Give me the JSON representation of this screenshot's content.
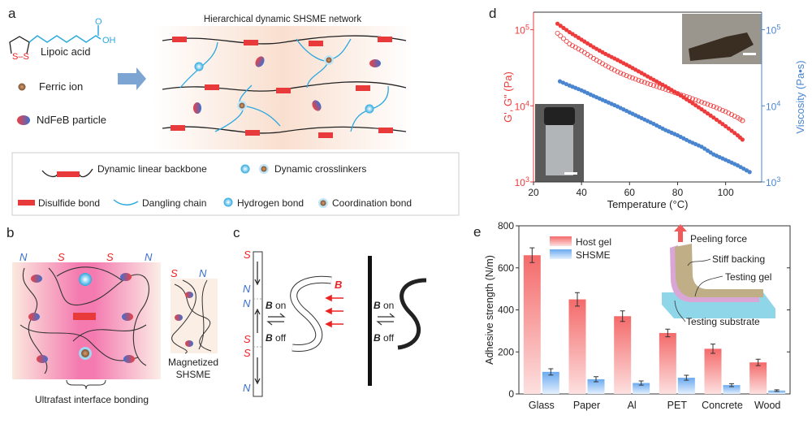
{
  "panels": {
    "a": {
      "label": "a",
      "network_title": "Hierarchical dynamic SHSME network",
      "molecule": {
        "name": "Lipoic acid",
        "atom_o": "O",
        "atom_oh": "OH",
        "atom_s": "S–S"
      },
      "ferric_ion": "Ferric ion",
      "ndfeb": "NdFeB particle",
      "legend": {
        "backbone": "Dynamic linear backbone",
        "crosslinkers": "Dynamic crosslinkers",
        "disulfide": "Disulfide bond",
        "dangling": "Dangling chain",
        "hydrogen": "Hydrogen bond",
        "coordination": "Coordination bond"
      }
    },
    "b": {
      "label": "b",
      "poles": [
        "N",
        "S",
        "S",
        "N"
      ],
      "small_poles": [
        "S",
        "N"
      ],
      "bonding_caption": "Ultrafast interface bonding",
      "magnetized_line1": "Magnetized",
      "magnetized_line2": "SHSME"
    },
    "c": {
      "label": "c",
      "strip_poles": [
        "S",
        "N",
        "N",
        "S",
        "S",
        "N"
      ],
      "b_symbol": "B",
      "on": " on",
      "off": " off",
      "colors": {
        "north": "#3a6fd0",
        "south": "#ee2222"
      }
    },
    "d": {
      "label": "d"
    },
    "e": {
      "label": "e"
    }
  },
  "chart_data": [
    {
      "type": "scatter",
      "panel": "d",
      "xlabel": "Temperature (°C)",
      "ylabel_left": "G', G\" (Pa)",
      "ylabel_right": "Viscosity (Pa•s)",
      "xlim": [
        20,
        115
      ],
      "ylim_left": [
        1000,
        170000
      ],
      "ylim_right": [
        1000,
        170000
      ],
      "yscale": "log",
      "x_ticks": [
        "20",
        "40",
        "60",
        "80",
        "100"
      ],
      "y_ticks_left": [
        "10^3",
        "10^4",
        "10^5"
      ],
      "y_ticks_right": [
        "10^3",
        "10^4",
        "10^5"
      ],
      "grid": false,
      "series": [
        {
          "axis": "left",
          "marker": "filled",
          "color": "#ee3b3b",
          "x": [
            30,
            35,
            40,
            45,
            50,
            55,
            60,
            65,
            70,
            75,
            80,
            85,
            90,
            95,
            100,
            105,
            107
          ],
          "y": [
            120000,
            93000,
            74000,
            59000,
            48000,
            40000,
            33000,
            27000,
            22000,
            18000,
            14500,
            11500,
            9000,
            7000,
            5400,
            4100,
            3600
          ]
        },
        {
          "axis": "left",
          "marker": "open",
          "color": "#ee3b3b",
          "x": [
            30,
            35,
            40,
            45,
            50,
            55,
            60,
            65,
            70,
            75,
            80,
            85,
            90,
            95,
            100,
            105,
            107
          ],
          "y": [
            90000,
            65000,
            53000,
            42000,
            34000,
            28000,
            24000,
            21000,
            18500,
            16500,
            14500,
            12800,
            11200,
            9800,
            8400,
            7000,
            6400
          ]
        },
        {
          "axis": "right",
          "marker": "filled",
          "color": "#4a86d0",
          "x": [
            31,
            35,
            40,
            45,
            50,
            55,
            60,
            65,
            70,
            75,
            80,
            85,
            90,
            95,
            100,
            105,
            110
          ],
          "y": [
            21000,
            18500,
            16000,
            13500,
            11500,
            9800,
            8200,
            6900,
            5800,
            4800,
            4100,
            3400,
            2900,
            2300,
            1950,
            1650,
            1350
          ]
        }
      ]
    },
    {
      "type": "bar",
      "panel": "e",
      "ylabel": "Adhesive strength (N/m)",
      "ylim": [
        0,
        800
      ],
      "y_ticks": [
        "0",
        "200",
        "400",
        "600",
        "800"
      ],
      "categories": [
        "Glass",
        "Paper",
        "Al",
        "PET",
        "Concrete",
        "Wood"
      ],
      "legend_position": "top-left",
      "series": [
        {
          "name": "Host gel",
          "color": "#f26b6b",
          "values": [
            660,
            450,
            370,
            290,
            215,
            150
          ],
          "errors": [
            35,
            32,
            25,
            18,
            22,
            15
          ]
        },
        {
          "name": "SHSME",
          "color": "#6aaaf0",
          "values": [
            105,
            70,
            52,
            77,
            42,
            16
          ],
          "errors": [
            15,
            12,
            10,
            12,
            7,
            4
          ]
        }
      ],
      "inset": {
        "peeling": "Peeling force",
        "backing": "Stiff backing",
        "gel": "Testing gel",
        "substrate": "Testing substrate"
      }
    }
  ]
}
